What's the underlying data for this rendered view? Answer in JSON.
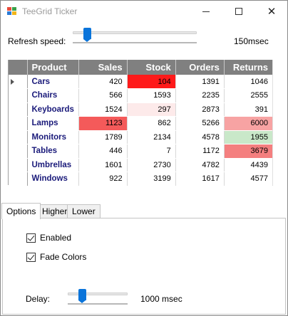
{
  "window": {
    "title": "TeeGrid Ticker",
    "controls": {
      "minimize": "minimize",
      "maximize": "maximize",
      "close": "✕"
    }
  },
  "refresh": {
    "label": "Refresh speed:",
    "value": "150msec",
    "level": 0.09
  },
  "grid": {
    "columns": [
      "Product",
      "Sales",
      "Stock",
      "Orders",
      "Returns"
    ],
    "selected_row": 0,
    "rows": [
      {
        "product": "Cars",
        "sales": "420",
        "stock": "104",
        "orders": "1391",
        "returns": "1046"
      },
      {
        "product": "Chairs",
        "sales": "566",
        "stock": "1593",
        "orders": "2235",
        "returns": "2555"
      },
      {
        "product": "Keyboards",
        "sales": "1524",
        "stock": "297",
        "orders": "2873",
        "returns": "391"
      },
      {
        "product": "Lamps",
        "sales": "1123",
        "stock": "862",
        "orders": "5266",
        "returns": "6000"
      },
      {
        "product": "Monitors",
        "sales": "1789",
        "stock": "2134",
        "orders": "4578",
        "returns": "1955"
      },
      {
        "product": "Tables",
        "sales": "446",
        "stock": "7",
        "orders": "1172",
        "returns": "3679"
      },
      {
        "product": "Umbrellas",
        "sales": "1601",
        "stock": "2730",
        "orders": "4782",
        "returns": "4439"
      },
      {
        "product": "Windows",
        "sales": "922",
        "stock": "3199",
        "orders": "1617",
        "returns": "4577"
      }
    ],
    "highlights": [
      {
        "row": 0,
        "col": "stock",
        "color": "#ff1a1a"
      },
      {
        "row": 2,
        "col": "stock",
        "color": "#fdeaea"
      },
      {
        "row": 3,
        "col": "sales",
        "color": "#f45a5a"
      },
      {
        "row": 3,
        "col": "returns",
        "color": "#f7a3a3"
      },
      {
        "row": 4,
        "col": "returns",
        "color": "#c9e8c9"
      },
      {
        "row": 5,
        "col": "returns",
        "color": "#f47f7f"
      }
    ]
  },
  "tabs": [
    {
      "label": "Options",
      "active": true
    },
    {
      "label": "Higher",
      "active": false
    },
    {
      "label": "Lower",
      "active": false
    }
  ],
  "options": {
    "enabled_label": "Enabled",
    "enabled_checked": true,
    "fade_label": "Fade Colors",
    "fade_checked": true,
    "delay_label": "Delay:",
    "delay_value": "1000 msec",
    "delay_level": 0.2
  }
}
